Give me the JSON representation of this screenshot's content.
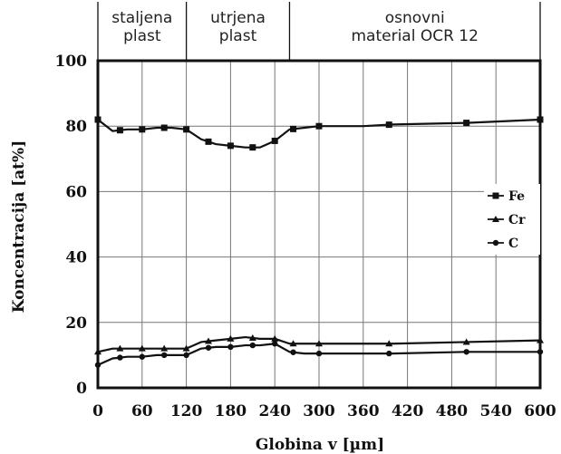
{
  "chart_data": {
    "type": "line",
    "title": "",
    "xlabel": "Globina v [µm]",
    "ylabel": "Koncentracija [at%]",
    "xlim": [
      0,
      600
    ],
    "ylim": [
      0,
      100
    ],
    "xticks": [
      0,
      60,
      120,
      180,
      240,
      300,
      360,
      420,
      480,
      540,
      600
    ],
    "yticks": [
      0,
      20,
      40,
      60,
      80,
      100
    ],
    "grid": true,
    "legend_position": "right",
    "regions": [
      {
        "lines": [
          "staljena",
          "plast"
        ],
        "x_start": 0,
        "x_end": 120
      },
      {
        "lines": [
          "utrjena",
          "plast"
        ],
        "x_start": 120,
        "x_end": 260
      },
      {
        "lines": [
          "osnovni",
          "material  OCR 12"
        ],
        "x_start": 260,
        "x_end": 600
      }
    ],
    "series": [
      {
        "name": "Fe",
        "x": [
          0,
          20,
          40,
          60,
          80,
          100,
          120,
          140,
          160,
          180,
          200,
          220,
          240,
          260,
          280,
          300,
          360,
          400,
          500,
          600
        ],
        "y": [
          82,
          78.5,
          79,
          79,
          79.5,
          79.5,
          79,
          76,
          74.5,
          74,
          73.5,
          73.5,
          75.5,
          79,
          79.5,
          80,
          80,
          80.5,
          81,
          82
        ]
      },
      {
        "name": "Cr",
        "x": [
          0,
          20,
          40,
          60,
          80,
          100,
          120,
          140,
          160,
          180,
          200,
          220,
          240,
          260,
          280,
          300,
          360,
          400,
          500,
          600
        ],
        "y": [
          11,
          12,
          12,
          12,
          12,
          12,
          12,
          14,
          14.5,
          15,
          15.5,
          15,
          15,
          13.5,
          13.5,
          13.5,
          13.5,
          13.5,
          14,
          14.5
        ]
      },
      {
        "name": "C",
        "x": [
          0,
          20,
          40,
          60,
          80,
          100,
          120,
          140,
          160,
          180,
          200,
          220,
          240,
          260,
          280,
          300,
          360,
          400,
          500,
          600
        ],
        "y": [
          7,
          9,
          9.5,
          9.5,
          10,
          10,
          10,
          12,
          12.5,
          12.5,
          13,
          13,
          13.5,
          11,
          10.5,
          10.5,
          10.5,
          10.5,
          11,
          11
        ]
      }
    ]
  }
}
